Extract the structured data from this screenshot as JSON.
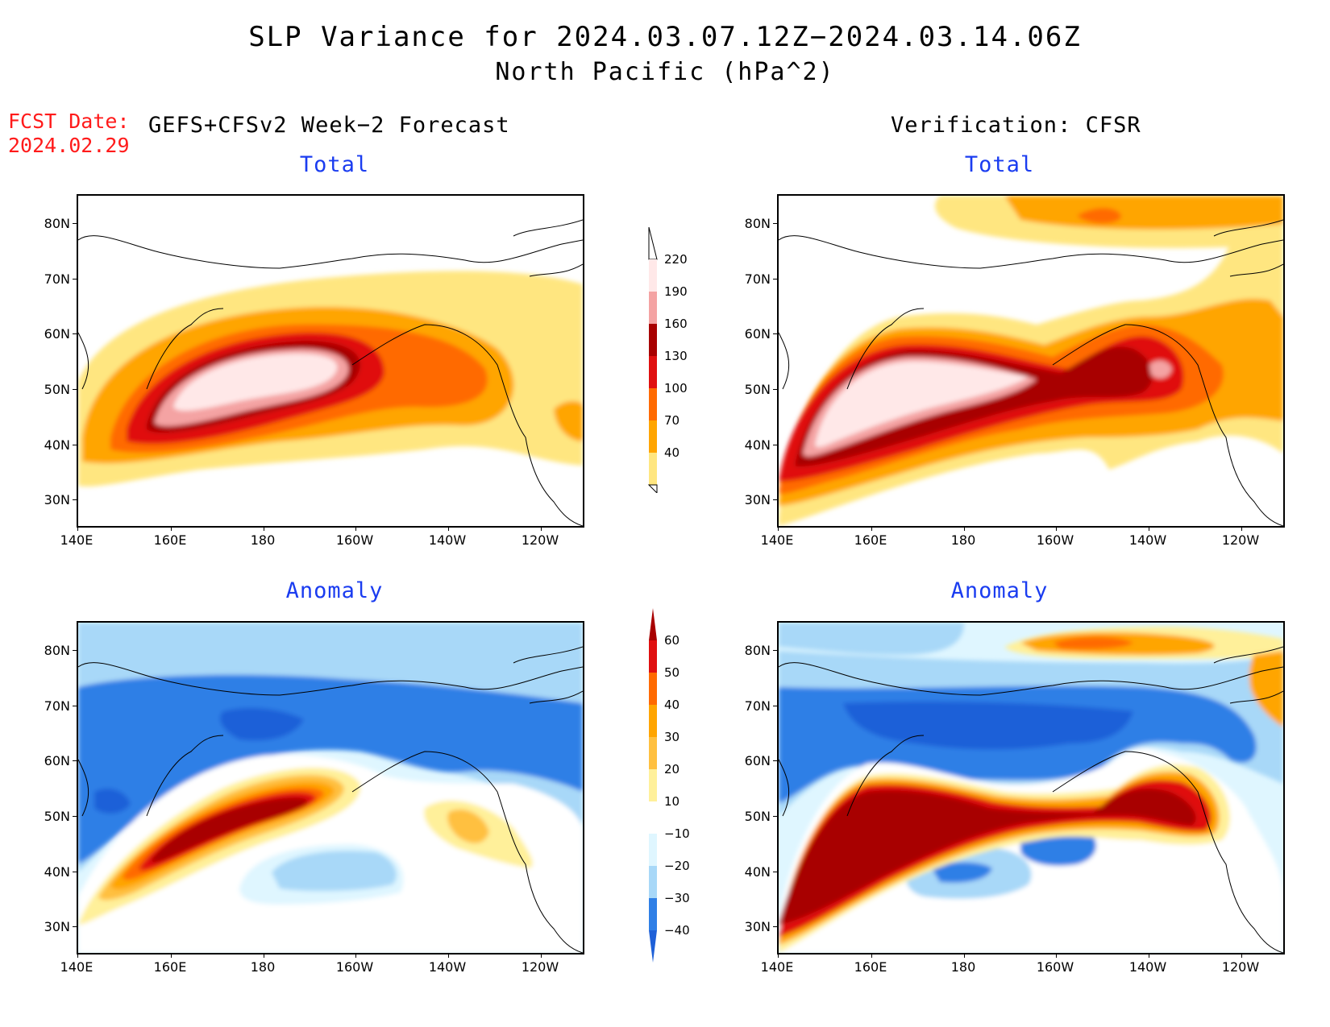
{
  "title": {
    "line1": "SLP Variance for 2024.03.07.12Z−2024.03.14.06Z",
    "line2": "North Pacific (hPa^2)"
  },
  "forecast": {
    "label": "FCST Date:",
    "date": "2024.02.29"
  },
  "left_heading": "GEFS+CFSv2 Week−2 Forecast",
  "right_heading": "Verification: CFSR",
  "panels": {
    "fcst_total": {
      "title": "Total"
    },
    "ver_total": {
      "title": "Total"
    },
    "fcst_anomaly": {
      "title": "Anomaly"
    },
    "ver_anomaly": {
      "title": "Anomaly"
    }
  },
  "axes": {
    "lat_labels": [
      "80N",
      "70N",
      "60N",
      "50N",
      "40N",
      "30N"
    ],
    "lon_labels": [
      "140E",
      "160E",
      "180",
      "160W",
      "140W",
      "120W"
    ]
  },
  "colorbars": {
    "total": {
      "levels": [
        "220",
        "190",
        "160",
        "130",
        "100",
        "70",
        "40"
      ],
      "colors": [
        "#ffe8e8",
        "#f4a3a3",
        "#a80000",
        "#e01010",
        "#ff6a00",
        "#ffa500",
        "#ffe680"
      ]
    },
    "anomaly": {
      "levels": [
        "60",
        "50",
        "40",
        "30",
        "20",
        "10",
        "−10",
        "−20",
        "−30",
        "−40"
      ],
      "colors": [
        "#a80000",
        "#e01010",
        "#ff6a00",
        "#ffa500",
        "#ffc040",
        "#fff09a",
        "#ffffff",
        "#dff6ff",
        "#a8d8f8",
        "#5ab0f0",
        "#2f7fe6",
        "#1e60d8"
      ]
    }
  },
  "colors": {
    "title_blue": "#1a3cf0",
    "fcst_red": "#ff1a1a"
  }
}
